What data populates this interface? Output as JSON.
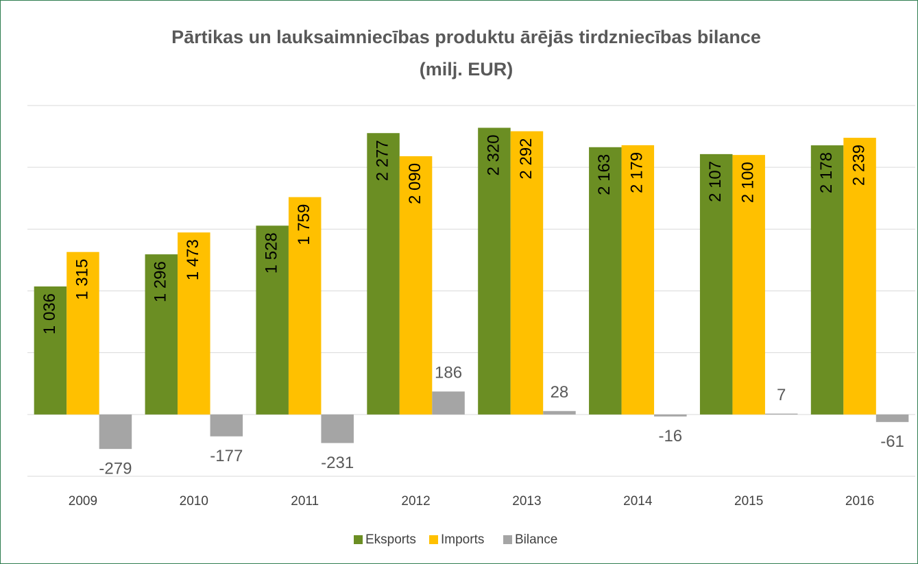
{
  "chart_data": {
    "type": "bar",
    "title": [
      "Pārtikas un lauksaimniecības produktu ārējās tirdzniecības bilance",
      "(milj. EUR)"
    ],
    "categories": [
      "2009",
      "2010",
      "2011",
      "2012",
      "2013",
      "2014",
      "2015",
      "2016"
    ],
    "series": [
      {
        "name": "Eksports",
        "color": "#6b8e23",
        "values": [
          1036,
          1296,
          1528,
          2277,
          2320,
          2163,
          2107,
          2178
        ],
        "value_labels": [
          "1 036",
          "1 296",
          "1 528",
          "2 277",
          "2 320",
          "2 163",
          "2 107",
          "2 178"
        ]
      },
      {
        "name": "Imports",
        "color": "#ffc000",
        "values": [
          1315,
          1473,
          1759,
          2090,
          2292,
          2179,
          2100,
          2239
        ],
        "value_labels": [
          "1 315",
          "1 473",
          "1 759",
          "2 090",
          "2 292",
          "2 179",
          "2 100",
          "2 239"
        ]
      },
      {
        "name": "Bilance",
        "color": "#a5a5a5",
        "values": [
          -279,
          -177,
          -231,
          186,
          28,
          -16,
          7,
          -61
        ]
      }
    ],
    "ylim": [
      -500,
      2500
    ],
    "yticks": [
      -500,
      0,
      500,
      1000,
      1500,
      2000,
      2500
    ],
    "grid": true,
    "legend": "bottom"
  }
}
